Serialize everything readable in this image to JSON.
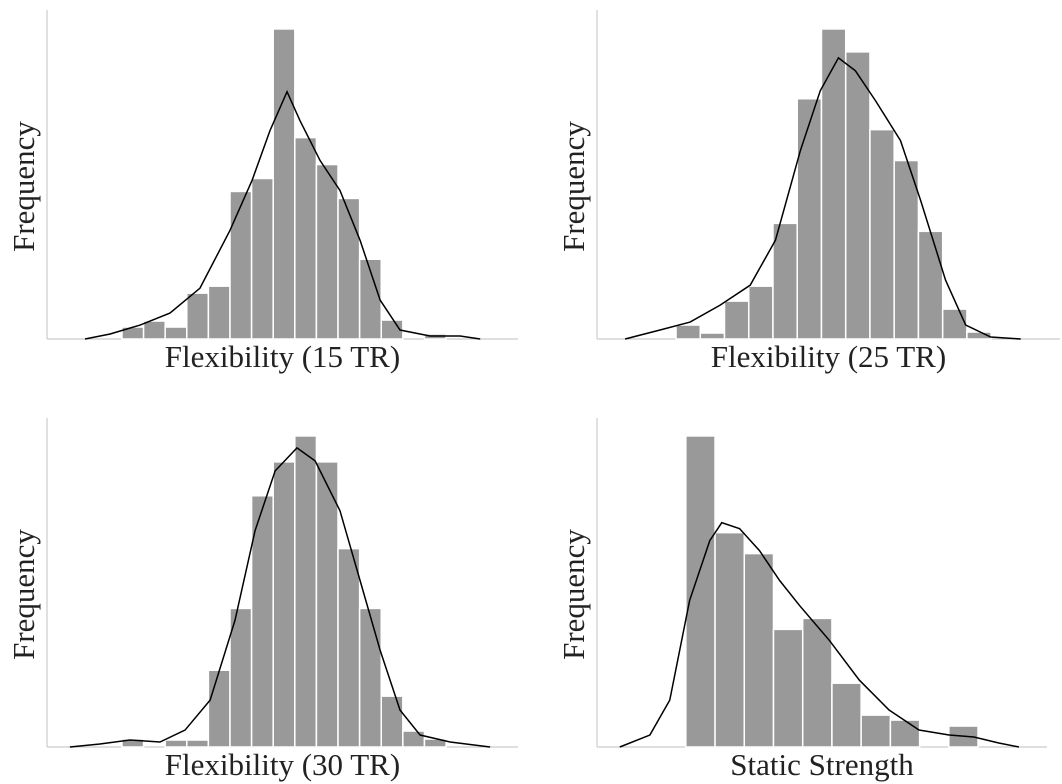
{
  "chart_data": [
    {
      "type": "histogram",
      "xlabel": "Flexibility (15 TR)",
      "ylabel": "Frequency",
      "color": "#999999",
      "bins": [
        3.47,
        4.47,
        5.47,
        6.47,
        7.47,
        8.47,
        9.47,
        10.47,
        11.47,
        12.47,
        13.47,
        14.47,
        15.47,
        16.47,
        17.47,
        18.47
      ],
      "values": [
        12,
        18,
        12,
        46,
        53,
        148,
        161,
        311,
        202,
        175,
        141,
        80,
        19,
        0,
        5
      ],
      "xlim": [
        0,
        21.8
      ],
      "ylim": [
        0,
        330
      ],
      "kde": {
        "color": "#000000",
        "x": [
          1.76,
          2.92,
          4.31,
          5.69,
          7.08,
          8.47,
          9.49,
          10.32,
          11.11,
          11.71,
          12.64,
          13.56,
          14.49,
          15.42,
          16.34,
          17.73,
          19.12,
          20.05
        ],
        "values": [
          0,
          5,
          14,
          26,
          51,
          109,
          159,
          209,
          248,
          219,
          179,
          149,
          99,
          39,
          9,
          3,
          3,
          0
        ]
      }
    },
    {
      "type": "histogram",
      "xlabel": "Flexibility (25 TR)",
      "ylabel": "Frequency",
      "color": "#999999",
      "bins": [
        3.26,
        4.26,
        5.26,
        6.26,
        7.26,
        8.26,
        9.26,
        10.26,
        11.26,
        12.26,
        13.26,
        14.26,
        15.26,
        16.26
      ],
      "values": [
        14,
        6,
        38,
        53,
        116,
        241,
        311,
        288,
        210,
        179,
        108,
        30,
        7
      ],
      "xlim": [
        0,
        19.1
      ],
      "ylim": [
        0,
        330
      ],
      "kde": {
        "color": "#000000",
        "x": [
          1.16,
          2.6,
          3.84,
          5.08,
          6.32,
          7.36,
          8.39,
          9.21,
          9.96,
          10.66,
          11.49,
          12.52,
          13.35,
          14.38,
          15.21,
          16.24,
          17.48
        ],
        "values": [
          0,
          9,
          17,
          34,
          54,
          99,
          189,
          249,
          282,
          269,
          239,
          199,
          139,
          59,
          14,
          2,
          0
        ]
      }
    },
    {
      "type": "histogram",
      "xlabel": "Flexibility (30 TR)",
      "ylabel": "Frequency",
      "color": "#999999",
      "bins": [
        3.47,
        4.47,
        5.47,
        6.47,
        7.47,
        8.47,
        9.47,
        10.47,
        11.47,
        12.47,
        13.47,
        14.47,
        15.47,
        16.47,
        17.47,
        18.47
      ],
      "values": [
        8,
        0,
        7,
        7,
        77,
        139,
        252,
        286,
        312,
        286,
        199,
        139,
        51,
        16,
        8
      ],
      "xlim": [
        0,
        21.8
      ],
      "ylim": [
        0,
        330
      ],
      "kde": {
        "color": "#000000",
        "x": [
          1.06,
          2.45,
          3.84,
          5.23,
          6.39,
          7.55,
          8.7,
          9.63,
          10.56,
          11.57,
          12.41,
          13.56,
          14.49,
          15.42,
          16.34,
          17.27,
          18.66,
          20.51
        ],
        "values": [
          0,
          3,
          7,
          5,
          17,
          47,
          127,
          217,
          277,
          300,
          287,
          237,
          167,
          97,
          37,
          12,
          5,
          0
        ]
      }
    },
    {
      "type": "histogram",
      "xlabel": "Static Strength",
      "ylabel": "Frequency",
      "color": "#999999",
      "bins": [
        3.04,
        4.04,
        5.04,
        6.04,
        7.04,
        8.04,
        9.04,
        10.04,
        11.04,
        12.04,
        13.04
      ],
      "values": [
        312,
        215,
        194,
        118,
        129,
        64,
        32,
        27,
        0,
        21
      ],
      "xlim": [
        0,
        15.4
      ],
      "ylim": [
        0,
        330
      ],
      "kde": {
        "color": "#000000",
        "x": [
          0.78,
          1.81,
          2.49,
          3.17,
          3.86,
          4.27,
          4.88,
          5.56,
          6.25,
          6.93,
          7.95,
          8.98,
          10.0,
          11.02,
          12.05,
          12.9,
          13.75,
          14.44
        ],
        "values": [
          0,
          12,
          47,
          147,
          207,
          225,
          219,
          197,
          167,
          142,
          107,
          67,
          37,
          17,
          12,
          10,
          4,
          0
        ]
      }
    }
  ]
}
